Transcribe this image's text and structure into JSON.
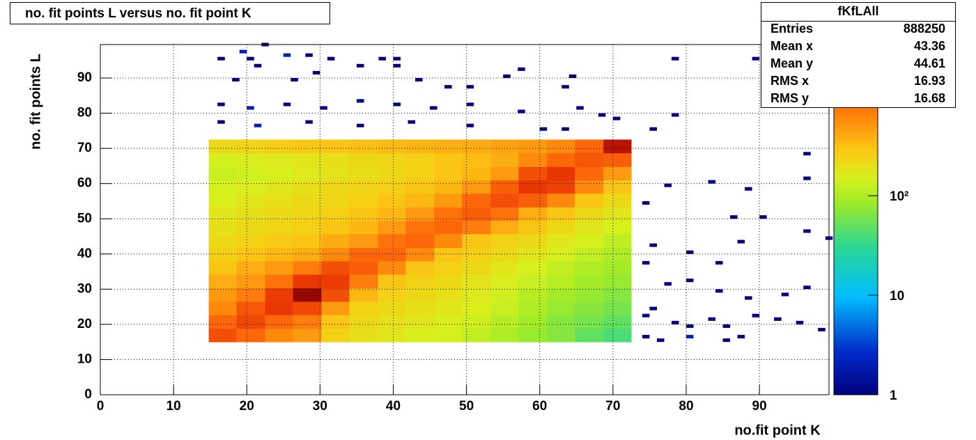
{
  "chart_data": {
    "type": "heatmap",
    "title": "no. fit points L versus no. fit point K",
    "x_label": "no.fit point K",
    "y_label": "no. fit points  L",
    "xbins": [
      14.8,
      18.6,
      22.5,
      26.3,
      30.2,
      34,
      37.9,
      41.7,
      45.6,
      49.4,
      53.3,
      57.1,
      61,
      64.8,
      68.7,
      72.5
    ],
    "ybins": [
      15,
      18.8,
      22.7,
      26.5,
      30.3,
      34.2,
      38,
      41.8,
      45.7,
      49.5,
      53.3,
      57.2,
      61,
      64.8,
      68.7,
      72.5
    ],
    "z": [
      [
        1200,
        900,
        600,
        500,
        250,
        200,
        180,
        160,
        150,
        120,
        100,
        80,
        70,
        50,
        40
      ],
      [
        900,
        1300,
        900,
        700,
        300,
        220,
        200,
        180,
        160,
        140,
        110,
        90,
        70,
        60,
        50
      ],
      [
        600,
        1100,
        1600,
        1300,
        500,
        250,
        220,
        200,
        180,
        160,
        130,
        100,
        80,
        70,
        60
      ],
      [
        500,
        700,
        1500,
        3000,
        1200,
        350,
        250,
        220,
        200,
        170,
        140,
        110,
        90,
        80,
        70
      ],
      [
        400,
        500,
        800,
        1600,
        1500,
        700,
        300,
        250,
        220,
        190,
        160,
        130,
        110,
        90,
        80
      ],
      [
        300,
        400,
        500,
        700,
        1200,
        1000,
        600,
        300,
        250,
        220,
        180,
        150,
        120,
        100,
        90
      ],
      [
        250,
        300,
        350,
        400,
        600,
        900,
        900,
        600,
        300,
        250,
        220,
        180,
        150,
        120,
        100
      ],
      [
        220,
        250,
        280,
        300,
        400,
        500,
        800,
        900,
        600,
        300,
        250,
        220,
        180,
        150,
        120
      ],
      [
        200,
        220,
        240,
        260,
        300,
        350,
        500,
        800,
        900,
        700,
        400,
        300,
        220,
        180,
        150
      ],
      [
        180,
        200,
        220,
        240,
        260,
        300,
        350,
        500,
        800,
        1000,
        800,
        400,
        300,
        220,
        180
      ],
      [
        160,
        180,
        200,
        220,
        240,
        260,
        300,
        350,
        500,
        900,
        1200,
        1000,
        600,
        300,
        220
      ],
      [
        150,
        160,
        180,
        200,
        220,
        240,
        260,
        300,
        350,
        500,
        1000,
        1600,
        1400,
        600,
        300
      ],
      [
        130,
        140,
        150,
        170,
        190,
        210,
        230,
        260,
        300,
        350,
        500,
        1200,
        1600,
        900,
        500
      ],
      [
        150,
        160,
        170,
        180,
        200,
        220,
        240,
        260,
        300,
        330,
        400,
        600,
        900,
        1100,
        1000
      ],
      [
        220,
        240,
        260,
        280,
        300,
        320,
        340,
        360,
        380,
        400,
        450,
        500,
        600,
        900,
        2500
      ]
    ],
    "sparse": {
      "x": [
        16,
        20,
        25,
        28,
        31,
        38,
        40,
        21,
        19,
        22,
        35,
        40,
        55,
        57,
        64,
        78,
        89,
        18,
        26,
        29,
        43,
        47,
        50,
        63,
        16,
        20,
        25,
        30,
        35,
        40,
        45,
        50,
        57,
        65,
        68,
        78,
        16,
        21,
        28,
        35,
        42,
        50,
        60,
        63,
        70,
        75,
        74,
        77,
        83,
        88,
        75,
        80,
        84,
        86,
        87,
        90,
        96,
        99,
        74,
        77,
        80,
        84,
        88,
        93,
        96,
        75,
        78,
        80,
        83,
        85,
        89,
        92,
        95,
        98,
        74,
        76,
        80,
        85,
        96,
        96,
        74,
        87
      ],
      "y": [
        95,
        95,
        96,
        96,
        95,
        95,
        95,
        93,
        97,
        99,
        93,
        93,
        90,
        92,
        90,
        95,
        95,
        89,
        89,
        91,
        89,
        87,
        87,
        87,
        82,
        81,
        82,
        81,
        83,
        82,
        81,
        82,
        80,
        81,
        79,
        79,
        77,
        76,
        77,
        76,
        77,
        76,
        75,
        75,
        78,
        75,
        54,
        59,
        60,
        58,
        42,
        40,
        37,
        50,
        43,
        50,
        46,
        44,
        37,
        31,
        32,
        29,
        27,
        28,
        30,
        24,
        20,
        19,
        21,
        19,
        22,
        21,
        20,
        18,
        16,
        15,
        16,
        15,
        68,
        61,
        22,
        16
      ],
      "values": [
        1,
        1,
        2,
        1,
        1,
        1,
        1,
        1,
        2,
        1,
        1,
        1,
        1,
        1,
        1,
        1,
        1,
        1,
        1,
        1,
        1,
        1,
        1,
        1,
        1,
        2,
        1,
        1,
        1,
        1,
        1,
        1,
        1,
        1,
        1,
        1,
        1,
        2,
        1,
        1,
        1,
        1,
        1,
        1,
        1,
        1,
        1,
        1,
        1,
        1,
        1,
        1,
        1,
        1,
        1,
        1,
        1,
        1,
        1,
        1,
        1,
        1,
        1,
        1,
        1,
        1,
        1,
        1,
        1,
        1,
        1,
        1,
        1,
        1,
        1,
        1,
        2,
        1,
        1,
        1,
        1,
        1
      ]
    },
    "xlim": [
      0,
      99.5
    ],
    "ylim": [
      0,
      99.5
    ],
    "xticks": [
      0,
      10,
      20,
      30,
      40,
      50,
      60,
      70,
      80,
      90
    ],
    "yticks": [
      0,
      10,
      20,
      30,
      40,
      50,
      60,
      70,
      80,
      90
    ],
    "zlim": [
      1,
      3300
    ],
    "zticks": [
      1,
      10,
      {
        "value": 100,
        "label": "10²"
      }
    ],
    "zlog": true,
    "grid": true,
    "stats": {
      "title": "fKfLAll",
      "rows": [
        {
          "name": "Entries",
          "value": 888250
        },
        {
          "name": "Mean x",
          "value": 43.36
        },
        {
          "name": "Mean y",
          "value": 44.61
        },
        {
          "name": "RMS x",
          "value": 16.93
        },
        {
          "name": "RMS y",
          "value": 16.68
        }
      ]
    }
  }
}
